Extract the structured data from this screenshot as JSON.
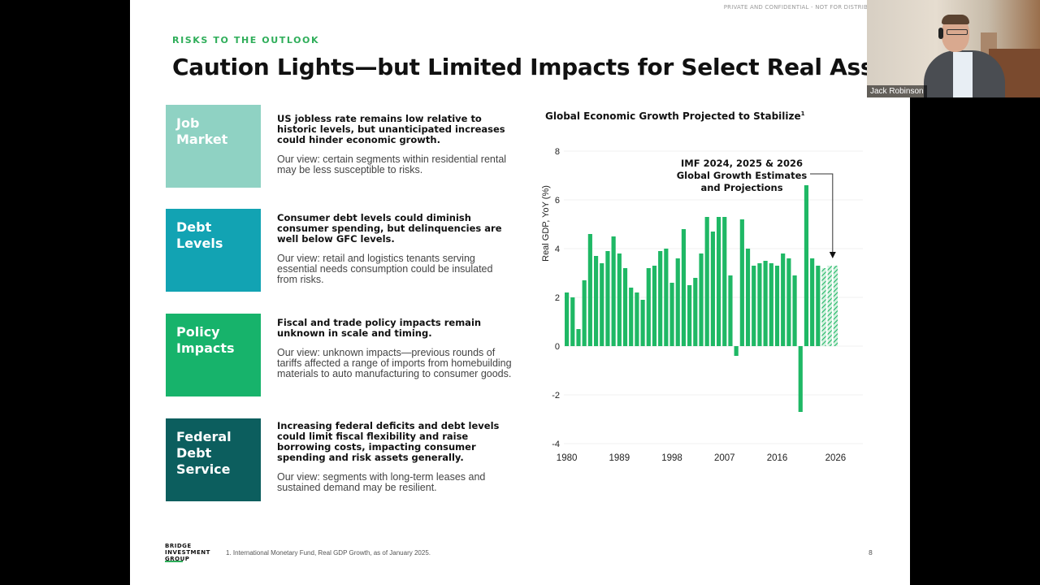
{
  "slide": {
    "confidential": "PRIVATE AND CONFIDENTIAL - NOT FOR DISTRIB",
    "eyebrow": "RISKS TO THE OUTLOOK",
    "title": "Caution Lights—but Limited Impacts for Select Real Assets",
    "footnote": "1. International Monetary Fund, Real GDP Growth, as of January 2025.",
    "page_number": "8",
    "logo_text": "BRIDGE\nINVESTMENT\nGROUP"
  },
  "risks": [
    {
      "title": "Job\nMarket",
      "color": "#8fd2c3",
      "bold": "US jobless rate remains low relative to historic levels, but unanticipated increases could hinder economic growth.",
      "view": "Our view: certain segments within residential rental may be less susceptible to risks."
    },
    {
      "title": "Debt\nLevels",
      "color": "#12a3b3",
      "bold": "Consumer debt levels could diminish consumer spending, but delinquencies are well below GFC levels.",
      "view": "Our view: retail and logistics tenants serving essential needs consumption could be insulated from risks."
    },
    {
      "title": "Policy\nImpacts",
      "color": "#17b36b",
      "bold": "Fiscal and trade policy impacts remain unknown in scale and timing.",
      "view": "Our view: unknown impacts—previous rounds of tariffs affected a range of imports from homebuilding materials to auto manufacturing to consumer goods."
    },
    {
      "title": "Federal\nDebt\nService",
      "color": "#0c5e5e",
      "bold": "Increasing federal deficits and debt levels could limit fiscal flexibility and raise borrowing costs, impacting consumer spending and risk assets generally.",
      "view": "Our view: segments with long-term leases and sustained demand may be resilient."
    }
  ],
  "chart_data": {
    "type": "bar",
    "title": "Global Economic Growth Projected to Stabilize",
    "title_sup": "1",
    "ylabel": "Real GDP, YoY (%)",
    "ylim": [
      -4,
      8
    ],
    "yticks": [
      "8",
      "6",
      "4",
      "2",
      "0",
      "-2",
      "-4"
    ],
    "xticks": [
      "1980",
      "1989",
      "1998",
      "2007",
      "2016",
      "2026"
    ],
    "grid": false,
    "bar_color": "#1fb865",
    "annotation": [
      "IMF 2024, 2025 & 2026",
      "Global Growth Estimates",
      "and Projections"
    ],
    "x": [
      1980,
      1981,
      1982,
      1983,
      1984,
      1985,
      1986,
      1987,
      1988,
      1989,
      1990,
      1991,
      1992,
      1993,
      1994,
      1995,
      1996,
      1997,
      1998,
      1999,
      2000,
      2001,
      2002,
      2003,
      2004,
      2005,
      2006,
      2007,
      2008,
      2009,
      2010,
      2011,
      2012,
      2013,
      2014,
      2015,
      2016,
      2017,
      2018,
      2019,
      2020,
      2021,
      2022,
      2023,
      2024,
      2025,
      2026
    ],
    "values": [
      2.2,
      2.0,
      0.7,
      2.7,
      4.6,
      3.7,
      3.4,
      3.9,
      4.5,
      3.8,
      3.2,
      2.4,
      2.2,
      1.9,
      3.2,
      3.3,
      3.9,
      4.0,
      2.6,
      3.6,
      4.8,
      2.5,
      2.8,
      3.8,
      5.3,
      4.7,
      5.3,
      5.3,
      2.9,
      -0.4,
      5.2,
      4.0,
      3.3,
      3.4,
      3.5,
      3.4,
      3.3,
      3.8,
      3.6,
      2.9,
      -2.7,
      6.6,
      3.6,
      3.3,
      3.2,
      3.3,
      3.3
    ],
    "projected_from": 2024
  },
  "video": {
    "participant_name": "Jack Robinson"
  }
}
